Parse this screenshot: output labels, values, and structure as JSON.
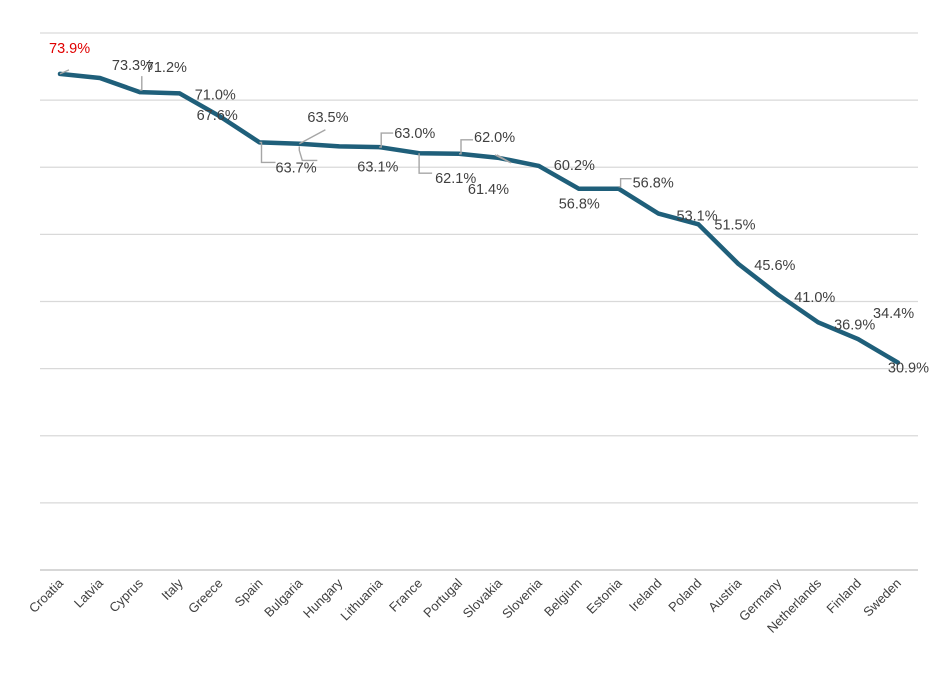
{
  "chart_data": {
    "type": "line",
    "title": "",
    "xlabel": "",
    "ylabel": "",
    "grid": true,
    "legend": "none",
    "ylim": [
      0,
      80
    ],
    "categories": [
      "Croatia",
      "Latvia",
      "Cyprus",
      "Italy",
      "Greece",
      "Spain",
      "Bulgaria",
      "Hungary",
      "Lithuania",
      "France",
      "Portugal",
      "Slovakia",
      "Slovenia",
      "Belgium",
      "Estonia",
      "Ireland",
      "Poland",
      "Austria",
      "Germany",
      "Netherlands",
      "Finland",
      "Sweden"
    ],
    "series": [
      {
        "values": [
          73.9,
          73.3,
          71.2,
          71.0,
          67.6,
          63.7,
          63.5,
          63.1,
          63.0,
          62.1,
          62.0,
          61.4,
          60.2,
          56.8,
          56.8,
          53.1,
          51.5,
          45.6,
          41.0,
          36.9,
          34.4,
          30.9
        ],
        "labels": [
          "73.9%",
          "73.3%",
          "71.2%",
          "71.0%",
          "67.6%",
          "63.7%",
          "63.5%",
          "63.1%",
          "63.0%",
          "62.1%",
          "62.0%",
          "61.4%",
          "60.2%",
          "56.8%",
          "56.8%",
          "53.1%",
          "51.5%",
          "45.6%",
          "41.0%",
          "36.9%",
          "34.4%",
          "30.9%"
        ],
        "color": "#1f5f7a"
      }
    ],
    "highlight_color": "#e00000",
    "label_color": "#404040",
    "leader_color": "#a6a6a6",
    "grid_color": "#d9d9d9",
    "axis_color": "#bfbfbf"
  }
}
